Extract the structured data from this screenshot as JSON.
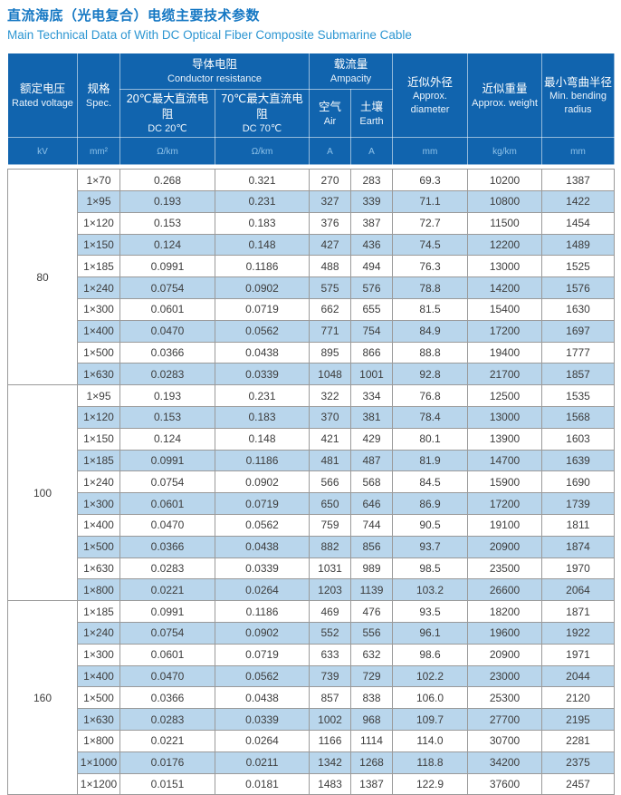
{
  "page": {
    "title_zh": "直流海底（光电复合）电缆主要技术参数",
    "title_en": "Main Technical Data of With DC Optical Fiber Composite Submarine Cable"
  },
  "colors": {
    "title_zh": "#1477c3",
    "title_en": "#2d96d2",
    "header_bg": "#1164ae",
    "header_text": "#ffffff",
    "header_unit_text": "#8fc3ea",
    "stripe_row": "#b9d6ec",
    "body_text": "#3d3d3d",
    "grid_border": "#9a9a9a"
  },
  "table": {
    "columns": {
      "voltage": {
        "zh": "额定电压",
        "en": "Rated voltage",
        "unit": "kV"
      },
      "spec": {
        "zh": "规格",
        "en": "Spec.",
        "unit": "mm²"
      },
      "resistance": {
        "zh": "导体电阻",
        "en": "Conductor resistance"
      },
      "dc20": {
        "zh": "20℃最大直流电阻",
        "en": "DC 20℃",
        "unit": "Ω/km"
      },
      "dc70": {
        "zh": "70℃最大直流电阻",
        "en": "DC 70℃",
        "unit": "Ω/km"
      },
      "ampacity": {
        "zh": "载流量",
        "en": "Ampacity"
      },
      "air": {
        "zh": "空气",
        "en": "Air",
        "unit": "A"
      },
      "earth": {
        "zh": "土壤",
        "en": "Earth",
        "unit": "A"
      },
      "diameter": {
        "zh": "近似外径",
        "en": "Approx. diameter",
        "unit": "mm"
      },
      "weight": {
        "zh": "近似重量",
        "en": "Approx. weight",
        "unit": "kg/km"
      },
      "bending": {
        "zh": "最小弯曲半径",
        "en": "Min. bending radius",
        "unit": "mm"
      }
    },
    "row_keys": [
      "spec",
      "dc20",
      "dc70",
      "air",
      "earth",
      "diameter",
      "weight",
      "bending"
    ],
    "groups": [
      {
        "voltage": "80",
        "rows": [
          [
            "1×70",
            "0.268",
            "0.321",
            "270",
            "283",
            "69.3",
            "10200",
            "1387"
          ],
          [
            "1×95",
            "0.193",
            "0.231",
            "327",
            "339",
            "71.1",
            "10800",
            "1422"
          ],
          [
            "1×120",
            "0.153",
            "0.183",
            "376",
            "387",
            "72.7",
            "11500",
            "1454"
          ],
          [
            "1×150",
            "0.124",
            "0.148",
            "427",
            "436",
            "74.5",
            "12200",
            "1489"
          ],
          [
            "1×185",
            "0.0991",
            "0.1186",
            "488",
            "494",
            "76.3",
            "13000",
            "1525"
          ],
          [
            "1×240",
            "0.0754",
            "0.0902",
            "575",
            "576",
            "78.8",
            "14200",
            "1576"
          ],
          [
            "1×300",
            "0.0601",
            "0.0719",
            "662",
            "655",
            "81.5",
            "15400",
            "1630"
          ],
          [
            "1×400",
            "0.0470",
            "0.0562",
            "771",
            "754",
            "84.9",
            "17200",
            "1697"
          ],
          [
            "1×500",
            "0.0366",
            "0.0438",
            "895",
            "866",
            "88.8",
            "19400",
            "1777"
          ],
          [
            "1×630",
            "0.0283",
            "0.0339",
            "1048",
            "1001",
            "92.8",
            "21700",
            "1857"
          ]
        ]
      },
      {
        "voltage": "100",
        "rows": [
          [
            "1×95",
            "0.193",
            "0.231",
            "322",
            "334",
            "76.8",
            "12500",
            "1535"
          ],
          [
            "1×120",
            "0.153",
            "0.183",
            "370",
            "381",
            "78.4",
            "13000",
            "1568"
          ],
          [
            "1×150",
            "0.124",
            "0.148",
            "421",
            "429",
            "80.1",
            "13900",
            "1603"
          ],
          [
            "1×185",
            "0.0991",
            "0.1186",
            "481",
            "487",
            "81.9",
            "14700",
            "1639"
          ],
          [
            "1×240",
            "0.0754",
            "0.0902",
            "566",
            "568",
            "84.5",
            "15900",
            "1690"
          ],
          [
            "1×300",
            "0.0601",
            "0.0719",
            "650",
            "646",
            "86.9",
            "17200",
            "1739"
          ],
          [
            "1×400",
            "0.0470",
            "0.0562",
            "759",
            "744",
            "90.5",
            "19100",
            "1811"
          ],
          [
            "1×500",
            "0.0366",
            "0.0438",
            "882",
            "856",
            "93.7",
            "20900",
            "1874"
          ],
          [
            "1×630",
            "0.0283",
            "0.0339",
            "1031",
            "989",
            "98.5",
            "23500",
            "1970"
          ],
          [
            "1×800",
            "0.0221",
            "0.0264",
            "1203",
            "1139",
            "103.2",
            "26600",
            "2064"
          ]
        ]
      },
      {
        "voltage": "160",
        "rows": [
          [
            "1×185",
            "0.0991",
            "0.1186",
            "469",
            "476",
            "93.5",
            "18200",
            "1871"
          ],
          [
            "1×240",
            "0.0754",
            "0.0902",
            "552",
            "556",
            "96.1",
            "19600",
            "1922"
          ],
          [
            "1×300",
            "0.0601",
            "0.0719",
            "633",
            "632",
            "98.6",
            "20900",
            "1971"
          ],
          [
            "1×400",
            "0.0470",
            "0.0562",
            "739",
            "729",
            "102.2",
            "23000",
            "2044"
          ],
          [
            "1×500",
            "0.0366",
            "0.0438",
            "857",
            "838",
            "106.0",
            "25300",
            "2120"
          ],
          [
            "1×630",
            "0.0283",
            "0.0339",
            "1002",
            "968",
            "109.7",
            "27700",
            "2195"
          ],
          [
            "1×800",
            "0.0221",
            "0.0264",
            "1166",
            "1114",
            "114.0",
            "30700",
            "2281"
          ],
          [
            "1×1000",
            "0.0176",
            "0.0211",
            "1342",
            "1268",
            "118.8",
            "34200",
            "2375"
          ],
          [
            "1×1200",
            "0.0151",
            "0.0181",
            "1483",
            "1387",
            "122.9",
            "37600",
            "2457"
          ]
        ]
      }
    ]
  }
}
